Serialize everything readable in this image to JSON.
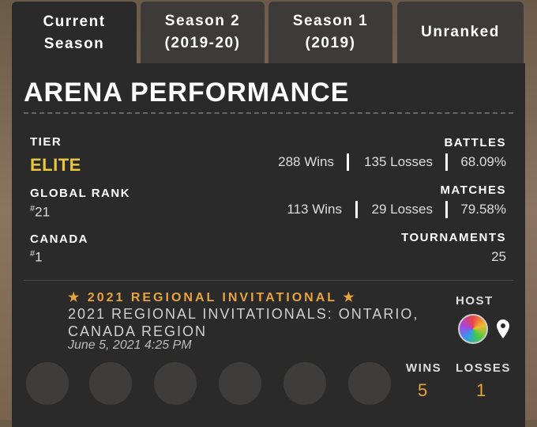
{
  "tabs": [
    "Current Season",
    "Season 2 (2019-20)",
    "Season 1 (2019)",
    "Unranked"
  ],
  "title": "ARENA PERFORMANCE",
  "left_stats": [
    {
      "label": "TIER",
      "value": "ELITE"
    },
    {
      "label": "GLOBAL RANK",
      "prefix": "#",
      "value": "21"
    },
    {
      "label": "CANADA",
      "prefix": "#",
      "value": "1"
    }
  ],
  "right_stats": [
    {
      "label": "BATTLES",
      "wins": "288 Wins",
      "losses": "135 Losses",
      "rate": "68.09%"
    },
    {
      "label": "MATCHES",
      "wins": "113 Wins",
      "losses": "29 Losses",
      "rate": "79.58%"
    },
    {
      "label": "TOURNAMENTS",
      "value": "25"
    }
  ],
  "event": {
    "heading": "★ 2021 REGIONAL INVITATIONAL ★",
    "name": "2021 REGIONAL INVITATIONALS: ONTARIO, CANADA REGION",
    "date": "June 5, 2021 4:25 PM",
    "host_label": "HOST",
    "wins_label": "WINS",
    "losses_label": "LOSSES",
    "wins": "5",
    "losses": "1"
  }
}
